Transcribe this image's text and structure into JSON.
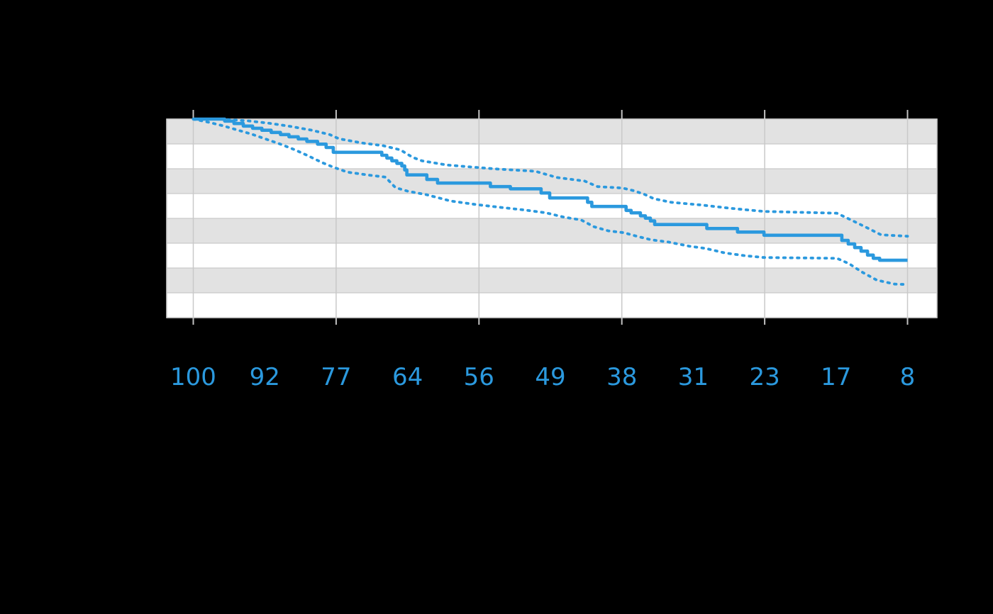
{
  "canvas": {
    "background": "#000000"
  },
  "colors": {
    "accent_blue": "#2B99DE",
    "band_gray": "#E2E2E2",
    "band_white": "#FFFFFF",
    "gridline": "#C9C9C9",
    "frame": "#CFCFCF",
    "tick": "#C2C2C2"
  },
  "at_risk_row": {
    "values": [
      "100",
      "92",
      "77",
      "64",
      "56",
      "49",
      "38",
      "31",
      "23",
      "17",
      "8"
    ]
  },
  "chart_data": {
    "type": "line",
    "subtype": "kaplan-meier-survival-step-curve-with-confidence-interval",
    "title": "",
    "xlabel": "",
    "ylabel": "",
    "x_axis": {
      "unit": "at-risk column index (axis tick labels not visible in image)",
      "label_positions": [
        0,
        1,
        2,
        3,
        4,
        5,
        6,
        7,
        8,
        9,
        10
      ],
      "gridline_positions": [
        0,
        2,
        4,
        6,
        8,
        10
      ],
      "labels_visible": false
    },
    "y_axis": {
      "range": [
        0,
        1
      ],
      "band_count": 8,
      "labels_visible": false
    },
    "legend": {
      "visible": false
    },
    "at_risk_counts": [
      100,
      92,
      77,
      64,
      56,
      49,
      38,
      31,
      23,
      17,
      8
    ],
    "series": [
      {
        "name": "survival_estimate",
        "style": "step-solid",
        "points": [
          [
            0.0,
            1.0
          ],
          [
            0.44,
            0.99
          ],
          [
            0.57,
            0.978
          ],
          [
            0.7,
            0.965
          ],
          [
            0.83,
            0.954
          ],
          [
            0.96,
            0.944
          ],
          [
            1.09,
            0.933
          ],
          [
            1.22,
            0.922
          ],
          [
            1.34,
            0.911
          ],
          [
            1.47,
            0.9
          ],
          [
            1.59,
            0.888
          ],
          [
            1.74,
            0.874
          ],
          [
            1.86,
            0.857
          ],
          [
            1.96,
            0.833
          ],
          [
            2.64,
            0.818
          ],
          [
            2.71,
            0.804
          ],
          [
            2.78,
            0.79
          ],
          [
            2.85,
            0.777
          ],
          [
            2.92,
            0.764
          ],
          [
            2.96,
            0.744
          ],
          [
            2.99,
            0.719
          ],
          [
            3.27,
            0.696
          ],
          [
            3.42,
            0.678
          ],
          [
            4.16,
            0.66
          ],
          [
            4.44,
            0.649
          ],
          [
            4.87,
            0.628
          ],
          [
            4.99,
            0.603
          ],
          [
            5.52,
            0.581
          ],
          [
            5.58,
            0.56
          ],
          [
            6.06,
            0.54
          ],
          [
            6.13,
            0.528
          ],
          [
            6.26,
            0.513
          ],
          [
            6.33,
            0.501
          ],
          [
            6.4,
            0.487
          ],
          [
            6.46,
            0.469
          ],
          [
            7.19,
            0.449
          ],
          [
            7.62,
            0.431
          ],
          [
            7.99,
            0.415
          ],
          [
            9.08,
            0.389
          ],
          [
            9.17,
            0.371
          ],
          [
            9.26,
            0.353
          ],
          [
            9.35,
            0.335
          ],
          [
            9.44,
            0.315
          ],
          [
            9.52,
            0.299
          ],
          [
            9.61,
            0.289
          ],
          [
            10.0,
            0.289
          ]
        ]
      },
      {
        "name": "confidence_upper",
        "style": "dotted",
        "points": [
          [
            0.0,
            1.0
          ],
          [
            0.37,
            1.0
          ],
          [
            0.77,
            0.991
          ],
          [
            1.07,
            0.979
          ],
          [
            1.37,
            0.963
          ],
          [
            1.66,
            0.944
          ],
          [
            1.91,
            0.922
          ],
          [
            2.04,
            0.901
          ],
          [
            2.36,
            0.88
          ],
          [
            2.66,
            0.866
          ],
          [
            2.9,
            0.845
          ],
          [
            3.07,
            0.808
          ],
          [
            3.2,
            0.79
          ],
          [
            3.55,
            0.769
          ],
          [
            3.85,
            0.76
          ],
          [
            4.24,
            0.749
          ],
          [
            4.79,
            0.737
          ],
          [
            5.09,
            0.706
          ],
          [
            5.48,
            0.688
          ],
          [
            5.66,
            0.66
          ],
          [
            6.01,
            0.653
          ],
          [
            6.16,
            0.64
          ],
          [
            6.31,
            0.622
          ],
          [
            6.45,
            0.599
          ],
          [
            6.69,
            0.581
          ],
          [
            7.12,
            0.567
          ],
          [
            7.47,
            0.553
          ],
          [
            7.77,
            0.542
          ],
          [
            7.99,
            0.535
          ],
          [
            9.01,
            0.526
          ],
          [
            9.21,
            0.492
          ],
          [
            9.42,
            0.455
          ],
          [
            9.63,
            0.417
          ],
          [
            10.0,
            0.41
          ]
        ]
      },
      {
        "name": "confidence_lower",
        "style": "dotted",
        "points": [
          [
            0.0,
            1.0
          ],
          [
            0.22,
            0.984
          ],
          [
            0.42,
            0.966
          ],
          [
            0.62,
            0.945
          ],
          [
            0.82,
            0.924
          ],
          [
            1.02,
            0.899
          ],
          [
            1.22,
            0.874
          ],
          [
            1.41,
            0.847
          ],
          [
            1.61,
            0.815
          ],
          [
            1.81,
            0.78
          ],
          [
            1.96,
            0.758
          ],
          [
            2.16,
            0.733
          ],
          [
            2.46,
            0.718
          ],
          [
            2.69,
            0.708
          ],
          [
            2.83,
            0.655
          ],
          [
            3.0,
            0.637
          ],
          [
            3.27,
            0.619
          ],
          [
            3.6,
            0.588
          ],
          [
            3.95,
            0.57
          ],
          [
            4.24,
            0.558
          ],
          [
            4.64,
            0.542
          ],
          [
            4.94,
            0.528
          ],
          [
            5.19,
            0.506
          ],
          [
            5.43,
            0.492
          ],
          [
            5.61,
            0.458
          ],
          [
            5.81,
            0.437
          ],
          [
            6.03,
            0.428
          ],
          [
            6.21,
            0.41
          ],
          [
            6.41,
            0.392
          ],
          [
            6.65,
            0.381
          ],
          [
            6.94,
            0.36
          ],
          [
            7.17,
            0.349
          ],
          [
            7.44,
            0.326
          ],
          [
            7.72,
            0.312
          ],
          [
            7.99,
            0.303
          ],
          [
            9.01,
            0.299
          ],
          [
            9.18,
            0.272
          ],
          [
            9.36,
            0.23
          ],
          [
            9.57,
            0.189
          ],
          [
            9.82,
            0.169
          ],
          [
            9.99,
            0.167
          ]
        ]
      }
    ]
  }
}
